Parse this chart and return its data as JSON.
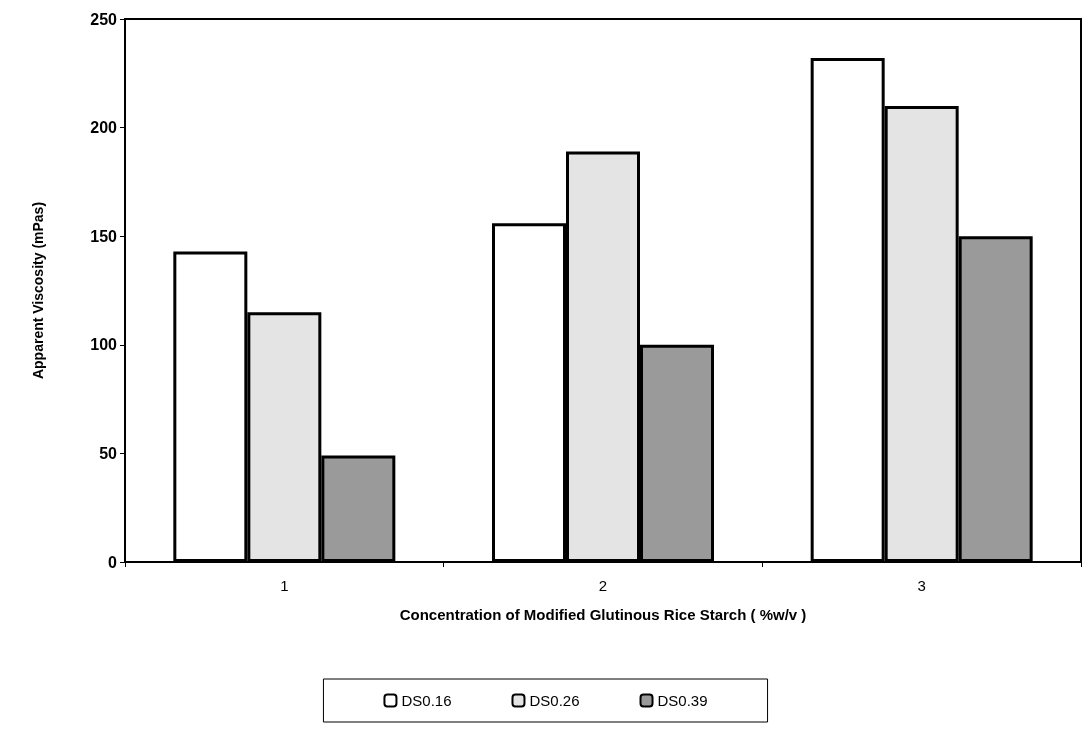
{
  "chart_data": {
    "type": "bar",
    "xlabel": "Concentration of Modified Glutinous Rice Starch ( %w/v )",
    "ylabel": "Apparent Viscosity (mPas)",
    "categories": [
      "1",
      "2",
      "3"
    ],
    "series": [
      {
        "name": "DS0.16",
        "color": "#ffffff",
        "values": [
          143,
          156,
          232
        ]
      },
      {
        "name": "DS0.26",
        "color": "#e4e4e4",
        "values": [
          115,
          189,
          210
        ]
      },
      {
        "name": "DS0.39",
        "color": "#9a9a9a",
        "values": [
          49,
          100,
          150
        ]
      }
    ],
    "ylim": [
      0,
      250
    ],
    "yticks": [
      0,
      50,
      100,
      150,
      200,
      250
    ],
    "grid": false,
    "legend": "bottom"
  }
}
